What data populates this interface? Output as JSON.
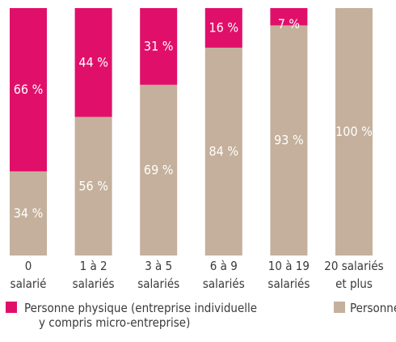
{
  "chart_data": {
    "type": "stacked_bar",
    "categories": [
      "0\nsalarié",
      "1 à 2\nsalariés",
      "3 à 5\nsalariés",
      "6 à 9\nsalariés",
      "10 à 19\nsalariés",
      "20 salariés\net plus"
    ],
    "series": [
      {
        "name": "Personne morale (s",
        "color": "#c4b09c",
        "values": [
          34,
          56,
          69,
          84,
          93,
          100
        ],
        "value_labels": [
          "34 %",
          "56 %",
          "69 %",
          "84 %",
          "93 %",
          "100 %"
        ]
      },
      {
        "name": "Personne physique (entreprise individuelle\ny compris micro-entreprise)",
        "color": "#e0106a",
        "values": [
          66,
          44,
          31,
          16,
          7,
          null
        ],
        "value_labels": [
          "66 %",
          "44 %",
          "31 %",
          "16 %",
          "7 %",
          null
        ]
      }
    ],
    "ylim": [
      0,
      100
    ]
  }
}
